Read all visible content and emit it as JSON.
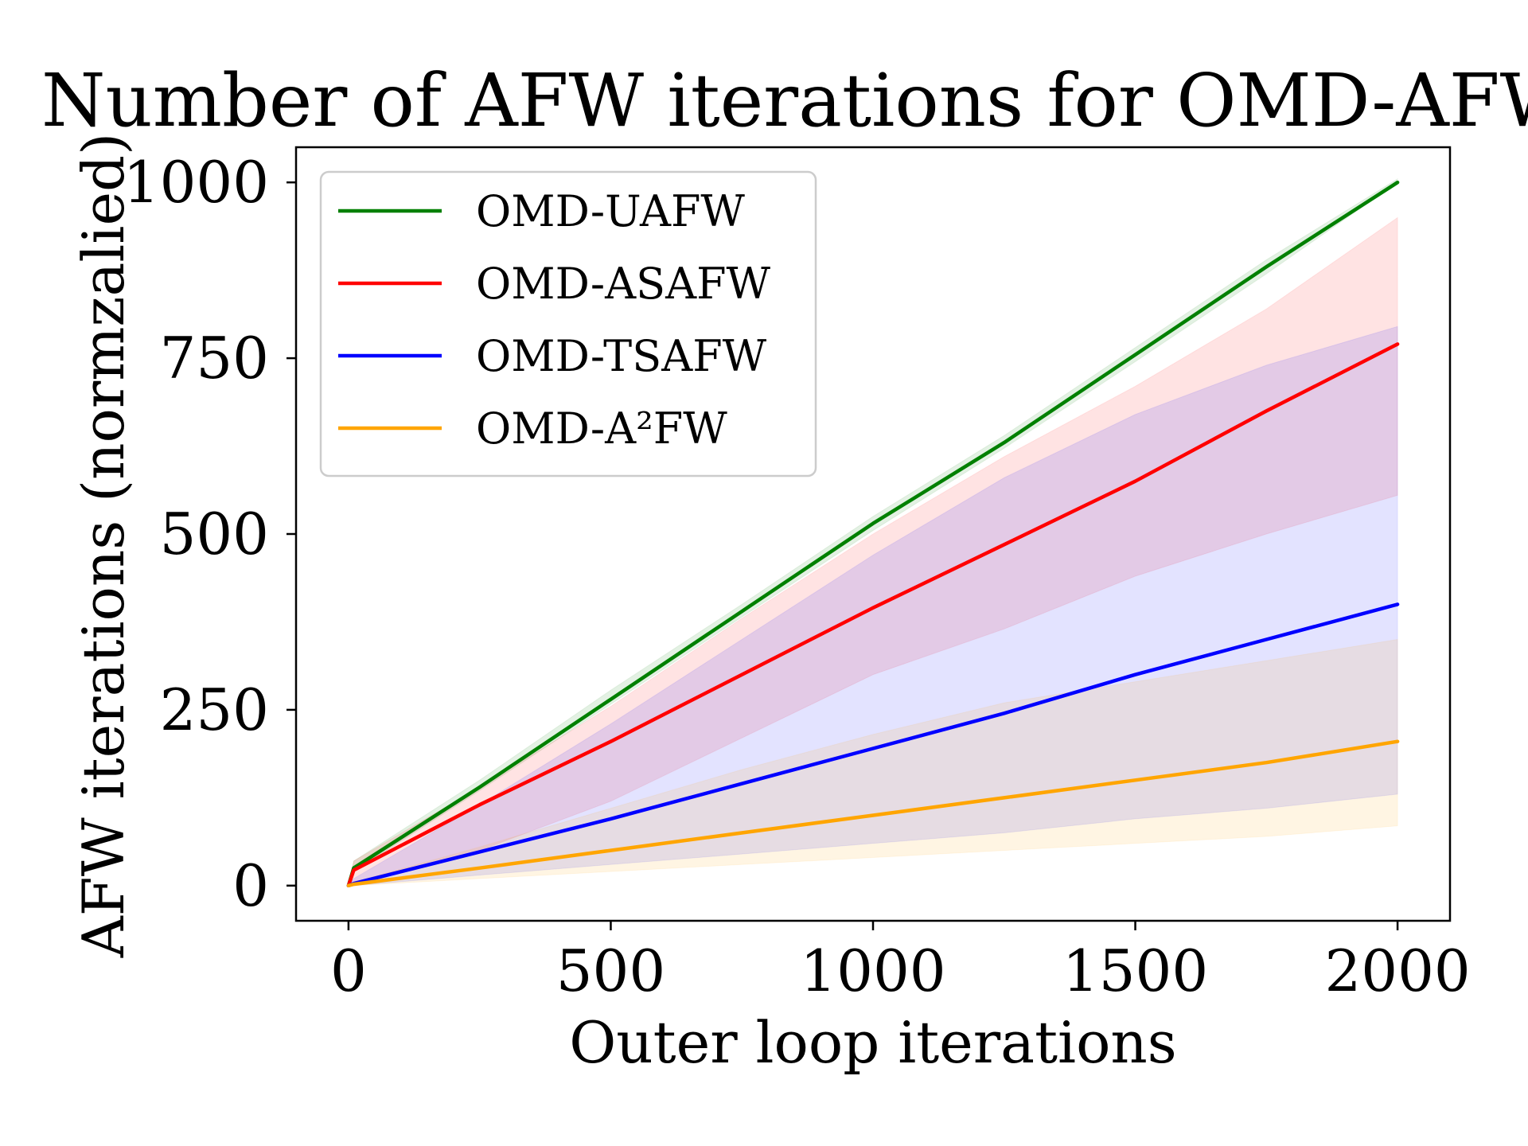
{
  "chart_data": {
    "type": "line",
    "title": "Number of AFW iterations for OMD-AFW var",
    "xlabel": "Outer loop iterations",
    "ylabel": "AFW iterations (normzalied)",
    "xlim": [
      -100,
      2100
    ],
    "ylim": [
      -50,
      1050
    ],
    "xticks": [
      0,
      500,
      1000,
      1500,
      2000
    ],
    "yticks": [
      0,
      250,
      500,
      750,
      1000
    ],
    "grid": false,
    "legend_position": "top-left",
    "series": [
      {
        "name": "OMD-UAFW",
        "color": "#008000",
        "x": [
          0,
          10,
          250,
          500,
          750,
          1000,
          1250,
          1500,
          1750,
          2000
        ],
        "y": [
          0,
          25,
          140,
          265,
          390,
          515,
          630,
          755,
          880,
          1000
        ],
        "band_lower": [
          0,
          20,
          135,
          258,
          382,
          505,
          622,
          745,
          870,
          1000
        ],
        "band_upper": [
          0,
          35,
          150,
          278,
          400,
          525,
          640,
          765,
          890,
          1005
        ]
      },
      {
        "name": "OMD-ASAFW",
        "color": "#ff0000",
        "x": [
          0,
          10,
          250,
          500,
          750,
          1000,
          1250,
          1500,
          1750,
          2000
        ],
        "y": [
          0,
          22,
          115,
          205,
          300,
          395,
          485,
          575,
          675,
          770
        ],
        "band_lower": [
          0,
          5,
          50,
          120,
          210,
          300,
          365,
          440,
          500,
          555
        ],
        "band_upper": [
          0,
          35,
          140,
          255,
          380,
          500,
          610,
          710,
          820,
          950
        ]
      },
      {
        "name": "OMD-TSAFW",
        "color": "#0000ff",
        "x": [
          0,
          10,
          250,
          500,
          750,
          1000,
          1250,
          1500,
          1750,
          2000
        ],
        "y": [
          0,
          3,
          48,
          95,
          145,
          195,
          245,
          300,
          350,
          400
        ],
        "band_lower": [
          0,
          0,
          15,
          30,
          45,
          60,
          75,
          95,
          110,
          130
        ],
        "band_upper": [
          0,
          10,
          115,
          230,
          350,
          470,
          580,
          670,
          740,
          795
        ]
      },
      {
        "name": "OMD-A²FW",
        "color": "#ffa500",
        "x": [
          0,
          10,
          250,
          500,
          750,
          1000,
          1250,
          1500,
          1750,
          2000
        ],
        "y": [
          0,
          2,
          25,
          50,
          75,
          100,
          125,
          150,
          175,
          205
        ],
        "band_lower": [
          0,
          0,
          10,
          20,
          30,
          40,
          50,
          60,
          70,
          85
        ],
        "band_upper": [
          0,
          5,
          55,
          110,
          165,
          215,
          260,
          290,
          320,
          350
        ]
      }
    ]
  }
}
